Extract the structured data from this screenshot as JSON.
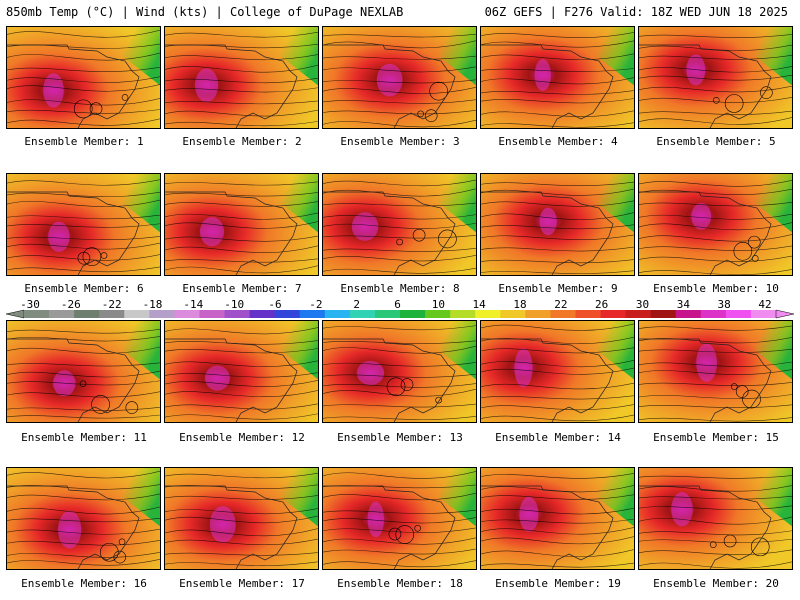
{
  "header": {
    "left": "850mb Temp (°C) | Wind (kts) | College of DuPage NEXLAB",
    "right": "06Z GEFS | F276 Valid: 18Z WED JUN 18 2025"
  },
  "colorbar": {
    "ticks": [
      "-30",
      "-26",
      "-22",
      "-18",
      "-14",
      "-10",
      "-6",
      "-2",
      "2",
      "6",
      "10",
      "14",
      "18",
      "22",
      "26",
      "30",
      "34",
      "38",
      "42"
    ],
    "colors": [
      "#7f8c7f",
      "#9a9a9a",
      "#6f7f6f",
      "#8a8a8a",
      "#c8c8c8",
      "#b4a0c8",
      "#dc8cdc",
      "#c864c8",
      "#a050c8",
      "#6432c8",
      "#3246dc",
      "#1e78f0",
      "#28b4f0",
      "#32d2b4",
      "#28c878",
      "#1eb43c",
      "#64c81e",
      "#b4dc28",
      "#f0f028",
      "#f0c828",
      "#f0a028",
      "#f07828",
      "#f05028",
      "#e62828",
      "#c81e1e",
      "#a01414",
      "#c8148c",
      "#dc32c8",
      "#f050f0",
      "#f08cf0"
    ]
  },
  "panels": [
    {
      "label": "Ensemble Member: 1"
    },
    {
      "label": "Ensemble Member: 2"
    },
    {
      "label": "Ensemble Member: 3"
    },
    {
      "label": "Ensemble Member: 4"
    },
    {
      "label": "Ensemble Member: 5"
    },
    {
      "label": "Ensemble Member: 6"
    },
    {
      "label": "Ensemble Member: 7"
    },
    {
      "label": "Ensemble Member: 8"
    },
    {
      "label": "Ensemble Member: 9"
    },
    {
      "label": "Ensemble Member: 10"
    },
    {
      "label": "Ensemble Member: 11"
    },
    {
      "label": "Ensemble Member: 12"
    },
    {
      "label": "Ensemble Member: 13"
    },
    {
      "label": "Ensemble Member: 14"
    },
    {
      "label": "Ensemble Member: 15"
    },
    {
      "label": "Ensemble Member: 16"
    },
    {
      "label": "Ensemble Member: 17"
    },
    {
      "label": "Ensemble Member: 18"
    },
    {
      "label": "Ensemble Member: 19"
    },
    {
      "label": "Ensemble Member: 20"
    }
  ]
}
